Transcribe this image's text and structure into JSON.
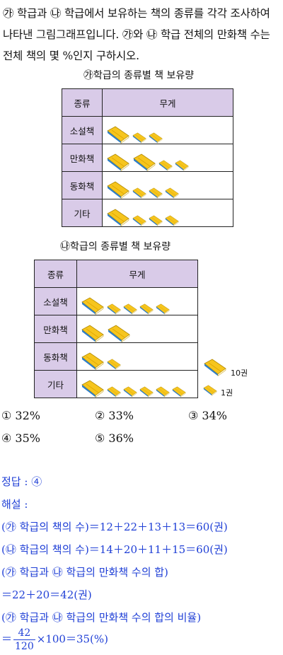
{
  "question": {
    "text": "㉮ 학급과 ㉯ 학급에서 보유하는 책의 종류를 각각 조사하여 나타낸 그림그래프입니다. ㉮와 ㉯ 학급 전체의 만화책 수는 전체 책의 몇 %인지 구하시오."
  },
  "graph_a": {
    "title": "㉮학급의 종류별 책 보유량",
    "header_kind": "종류",
    "header_amount": "무게",
    "rows": [
      {
        "label": "소설책",
        "big": 1,
        "small": 2
      },
      {
        "label": "만화책",
        "big": 2,
        "small": 2
      },
      {
        "label": "동화책",
        "big": 1,
        "small": 3
      },
      {
        "label": "기타",
        "big": 1,
        "small": 3
      }
    ]
  },
  "graph_b": {
    "title": "㉯학급의 종류별 책 보유량",
    "header_kind": "종류",
    "header_amount": "무게",
    "rows": [
      {
        "label": "소설책",
        "big": 1,
        "small": 4
      },
      {
        "label": "만화책",
        "big": 2,
        "small": 0
      },
      {
        "label": "동화책",
        "big": 1,
        "small": 1
      },
      {
        "label": "기타",
        "big": 1,
        "small": 5
      }
    ]
  },
  "legend": {
    "big_label": "10권",
    "small_label": "1권"
  },
  "choices": [
    "① 32%",
    "② 33%",
    "③ 34%",
    "④ 35%",
    "⑤ 36%"
  ],
  "answer": {
    "key": "정답 : ④",
    "heading": "해설 :",
    "line1": "(㉮ 학급의 책의 수)＝12＋22＋13＋13＝60(권)",
    "line2": "(㉯ 학급의 책의 수)＝14＋20＋11＋15＝60(권)",
    "line3": "(㉮ 학급과 ㉯ 학급의 만화책 수의 합)",
    "line4": "＝22＋20＝42(권)",
    "line5": "(㉮ 학급과 ㉯ 학급의 만화책 수의 합의 비율)",
    "line6_prefix": "＝",
    "frac_num": "42",
    "frac_den": "120",
    "line6_suffix": "×100＝35(%)"
  },
  "colors": {
    "header_bg": "#d9cbe8",
    "answer_text": "#1f3fd6",
    "book_yellow": "#f6c51e",
    "book_blue": "#2f7fc8"
  }
}
